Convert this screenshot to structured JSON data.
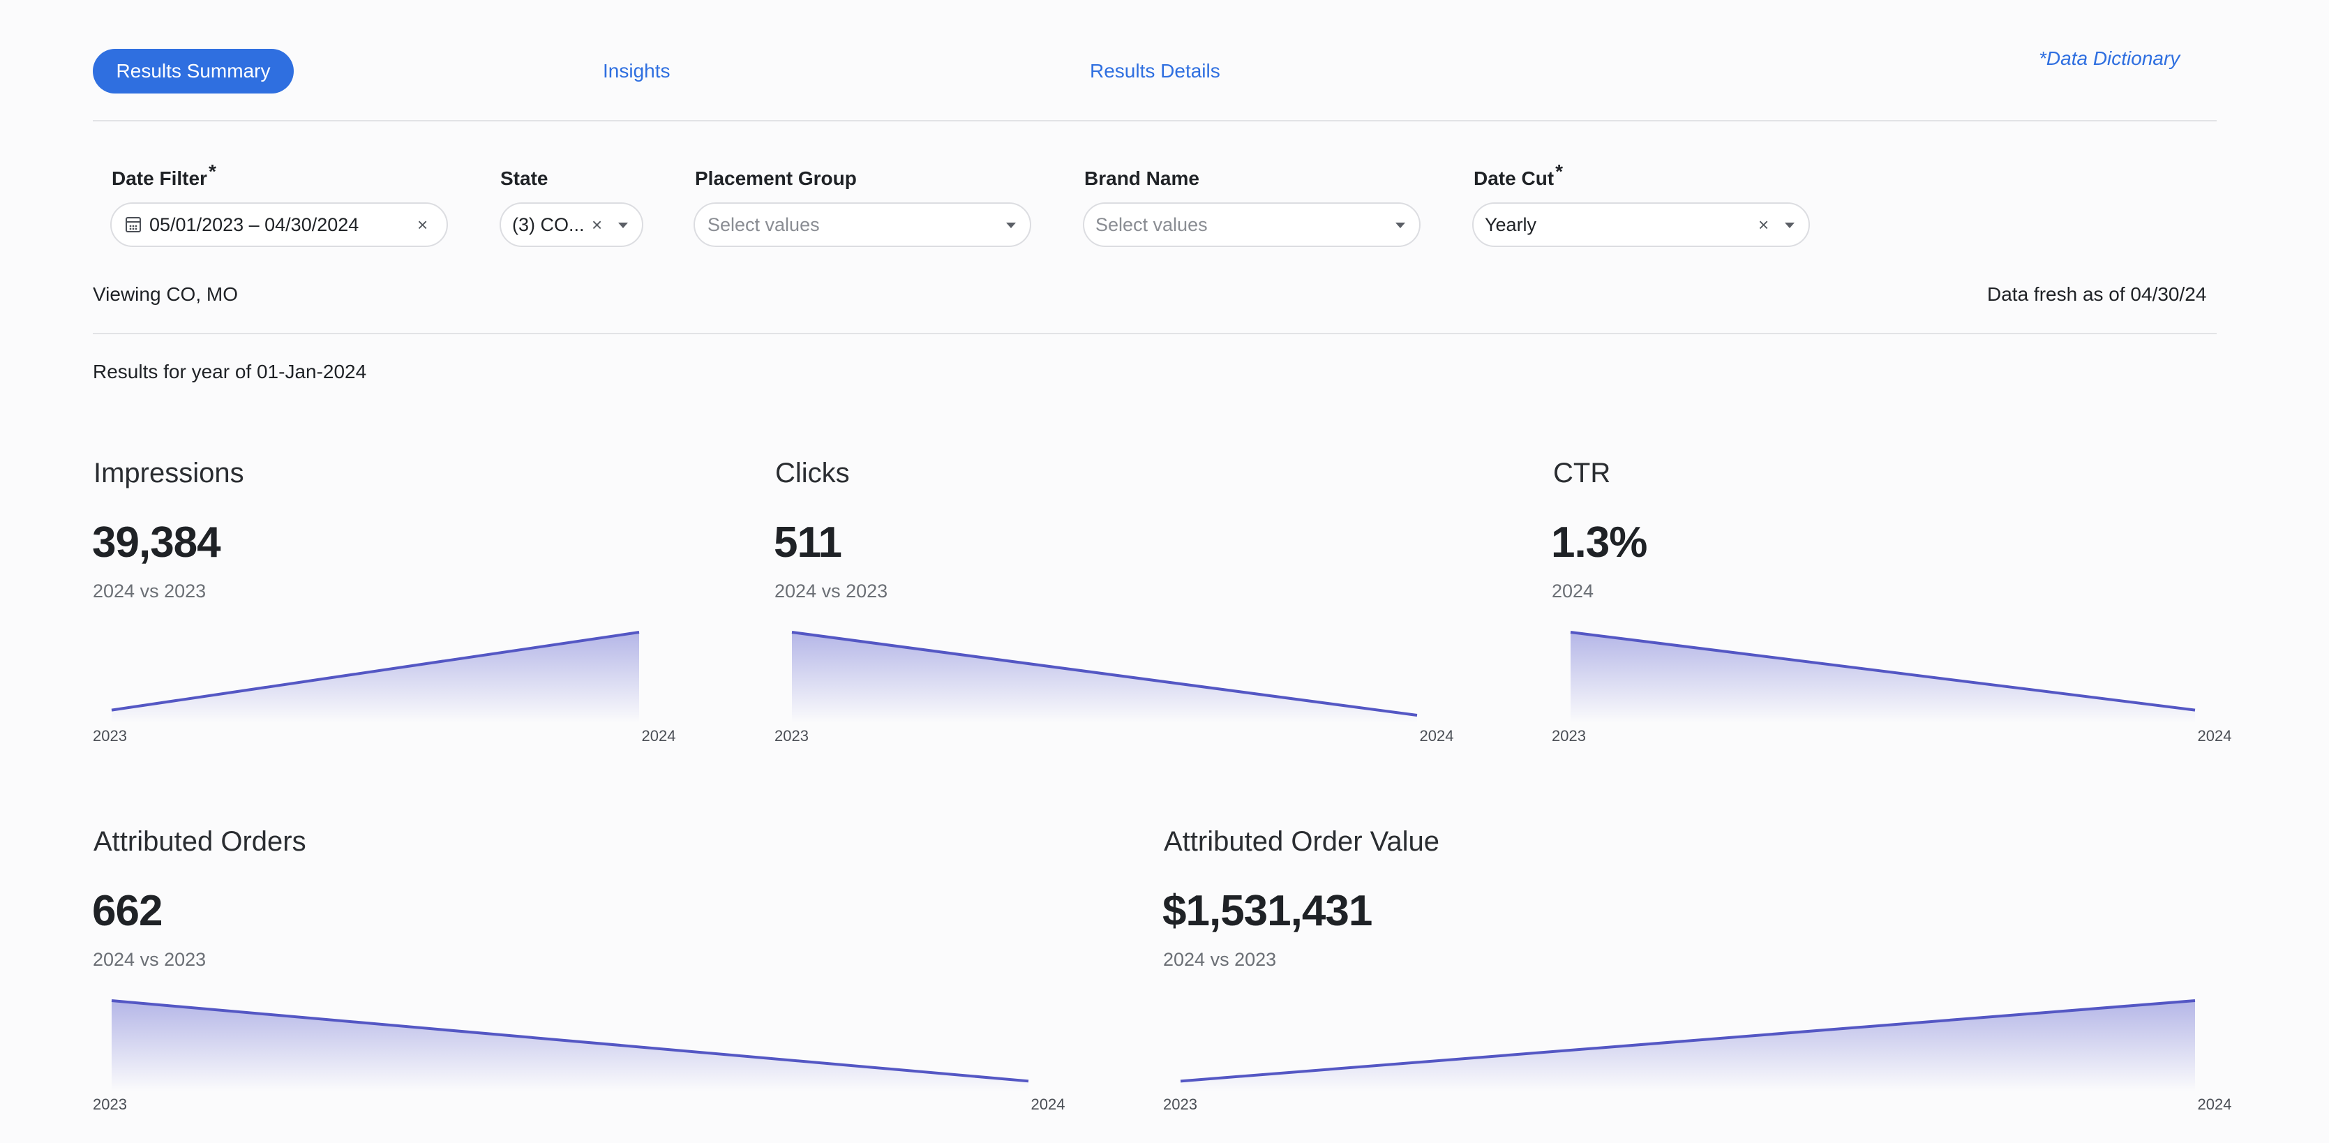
{
  "tabs": [
    {
      "label": "Results Summary",
      "active": true
    },
    {
      "label": "Insights",
      "active": false
    },
    {
      "label": "Results Details",
      "active": false
    }
  ],
  "data_dictionary_label": "*Data Dictionary",
  "filters": {
    "date": {
      "label": "Date Filter",
      "required": "*",
      "value": "05/01/2023 – 04/30/2024",
      "clear": "×"
    },
    "state": {
      "label": "State",
      "value": "(3) CO...",
      "clear": "×"
    },
    "placement_group": {
      "label": "Placement Group",
      "placeholder": "Select values"
    },
    "brand_name": {
      "label": "Brand Name",
      "placeholder": "Select values"
    },
    "date_cut": {
      "label": "Date Cut",
      "required": "*",
      "value": "Yearly",
      "clear": "×"
    }
  },
  "viewing_text": "Viewing CO, MO",
  "freshness_text": "Data fresh as of 04/30/24",
  "results_text": "Results for year of 01-Jan-2024",
  "colors": {
    "accent": "#2f6fe0",
    "spark_line": "#5457c4",
    "spark_fill": "#7b7ed6"
  },
  "metrics": [
    {
      "title": "Impressions",
      "value": "39,384",
      "comparison": "2024 vs 2023",
      "chart_data": {
        "type": "area",
        "x": [
          "2023",
          "2024"
        ],
        "trend": [
          0.1,
          1.0
        ]
      }
    },
    {
      "title": "Clicks",
      "value": "511",
      "comparison": "2024 vs 2023",
      "chart_data": {
        "type": "area",
        "x": [
          "2023",
          "2024"
        ],
        "trend": [
          1.0,
          0.04
        ]
      }
    },
    {
      "title": "CTR",
      "value": "1.3%",
      "comparison": "2024",
      "chart_data": {
        "type": "area",
        "x": [
          "2023",
          "2024"
        ],
        "trend": [
          1.0,
          0.1
        ]
      }
    },
    {
      "title": "Attributed Orders",
      "value": "662",
      "comparison": "2024 vs 2023",
      "chart_data": {
        "type": "area",
        "x": [
          "2023",
          "2024"
        ],
        "trend": [
          1.0,
          0.07
        ]
      }
    },
    {
      "title": "Attributed Order Value",
      "value": "$1,531,431",
      "comparison": "2024 vs 2023",
      "chart_data": {
        "type": "area",
        "x": [
          "2023",
          "2024"
        ],
        "trend": [
          0.07,
          1.0
        ]
      }
    }
  ]
}
